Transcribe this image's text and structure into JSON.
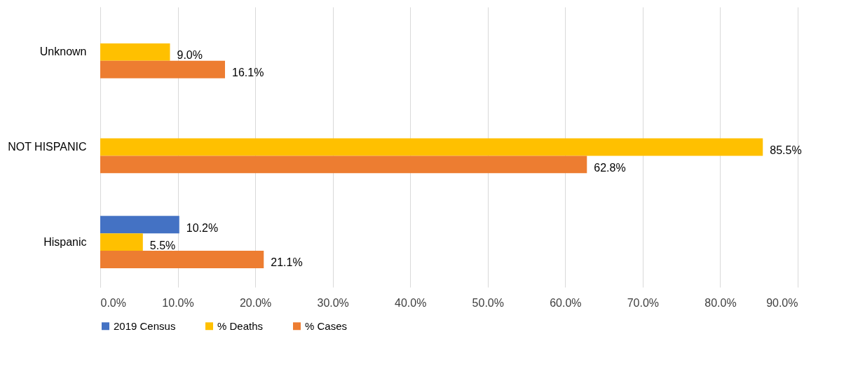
{
  "chart_data": {
    "type": "bar",
    "orientation": "horizontal",
    "categories": [
      "Unknown",
      "NOT HISPANIC",
      "Hispanic"
    ],
    "series": [
      {
        "name": "2019 Census",
        "color": "#4472c4",
        "values": [
          null,
          null,
          10.2
        ],
        "value_labels": [
          null,
          null,
          "10.2%"
        ]
      },
      {
        "name": "% Deaths",
        "color": "#ffc000",
        "values": [
          9.0,
          85.5,
          5.5
        ],
        "value_labels": [
          "9.0%",
          "85.5%",
          "5.5%"
        ]
      },
      {
        "name": "% Cases",
        "color": "#ed7d31",
        "values": [
          16.1,
          62.8,
          21.1
        ],
        "value_labels": [
          "16.1%",
          "62.8%",
          "21.1%"
        ]
      }
    ],
    "xlim": [
      0,
      90
    ],
    "xticks": [
      {
        "value": 0,
        "label": "0.0%"
      },
      {
        "value": 10,
        "label": "10.0%"
      },
      {
        "value": 20,
        "label": "20.0%"
      },
      {
        "value": 30,
        "label": "30.0%"
      },
      {
        "value": 40,
        "label": "40.0%"
      },
      {
        "value": 50,
        "label": "50.0%"
      },
      {
        "value": 60,
        "label": "60.0%"
      },
      {
        "value": 70,
        "label": "70.0%"
      },
      {
        "value": 80,
        "label": "80.0%"
      },
      {
        "value": 90,
        "label": "90.0%"
      }
    ],
    "grid": "x",
    "legend": "bottom"
  }
}
